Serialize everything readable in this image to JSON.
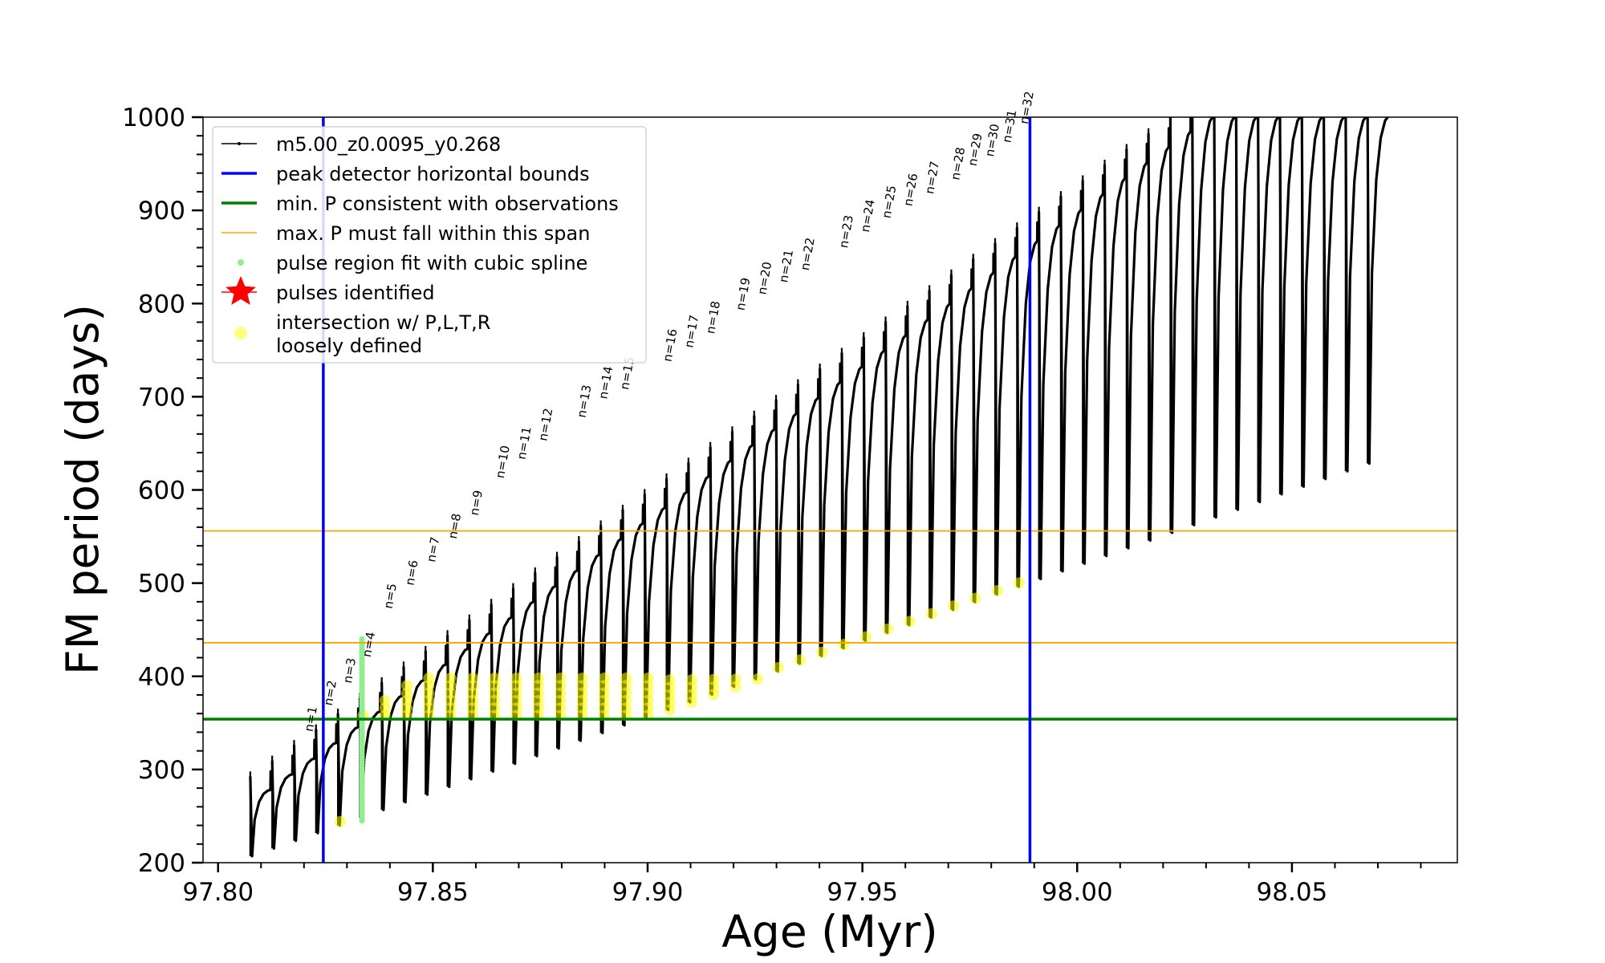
{
  "chart_data": {
    "type": "line",
    "title": "",
    "xlabel": "Age (Myr)",
    "ylabel": "FM period (days)",
    "xlim": [
      97.7965,
      98.0885
    ],
    "ylim": [
      200,
      1000
    ],
    "xticks": [
      97.8,
      97.85,
      97.9,
      97.95,
      98.0,
      98.05
    ],
    "xtick_labels": [
      "97.80",
      "97.85",
      "97.90",
      "97.95",
      "98.00",
      "98.05"
    ],
    "yticks": [
      200,
      300,
      400,
      500,
      600,
      700,
      800,
      900,
      1000
    ],
    "ytick_labels": [
      "200",
      "300",
      "400",
      "500",
      "600",
      "700",
      "800",
      "900",
      "1000"
    ],
    "grid": false,
    "legend_position": "upper-left",
    "colors": {
      "model": "#000000",
      "bounds": "#0000ff",
      "min_p": "#008000",
      "max_p": "#ffa500",
      "spline": "#90ee90",
      "pulses": "#ff0000",
      "intersection": "#ffff00"
    },
    "legend": [
      {
        "label": "m5.00_z0.0095_y0.268",
        "marker": "line-dot",
        "color": "#000000"
      },
      {
        "label": "peak detector horizontal bounds",
        "marker": "line-thick",
        "color": "#0000ff"
      },
      {
        "label": "min. P consistent with observations",
        "marker": "line-thick",
        "color": "#008000"
      },
      {
        "label": "max. P must fall within this span",
        "marker": "line-thin",
        "color": "#ffa500"
      },
      {
        "label": "pulse region fit with cubic spline",
        "marker": "dot",
        "color": "#90ee90"
      },
      {
        "label": "pulses identified",
        "marker": "star",
        "color": "#ff0000"
      },
      {
        "label": "intersection w/ P,L,T,R",
        "label2": "loosely defined",
        "marker": "circle",
        "color": "#ffff00"
      }
    ],
    "vertical_bounds": [
      97.8245,
      97.989
    ],
    "min_p": 354,
    "max_p_span": [
      436,
      556
    ],
    "pulse_labels": [
      "n=1",
      "n=2",
      "n=3",
      "n=4",
      "n=5",
      "n=6",
      "n=7",
      "n=8",
      "n=9",
      "n=10",
      "n=11",
      "n=12",
      "n=13",
      "n=14",
      "n=15",
      "n=16",
      "n=17",
      "n=18",
      "n=19",
      "n=20",
      "n=21",
      "n=22",
      "n=23",
      "n=24",
      "n=25",
      "n=26",
      "n=27",
      "n=28",
      "n=29",
      "n=30",
      "n=31",
      "n=32"
    ],
    "pulse_label_x": [
      97.822,
      97.8265,
      97.831,
      97.8355,
      97.8405,
      97.8455,
      97.8505,
      97.8555,
      97.8605,
      97.8665,
      97.8715,
      97.8765,
      97.8855,
      97.8905,
      97.8955,
      97.9055,
      97.9105,
      97.9155,
      97.9225,
      97.9275,
      97.9325,
      97.9375,
      97.9465,
      97.9515,
      97.9565,
      97.9615,
      97.9665,
      97.9725,
      97.9765,
      97.9805,
      97.9845,
      97.9885
    ],
    "pulse_label_y": [
      340,
      368,
      392,
      420,
      472,
      497,
      522,
      547,
      572,
      612,
      632,
      652,
      677,
      697,
      707,
      737,
      752,
      767,
      792,
      809,
      822,
      835,
      859,
      876,
      891,
      904,
      917,
      932,
      947,
      957,
      972,
      992
    ],
    "model_track": {
      "start_age": 97.8075,
      "cycle_spacing": 0.0051,
      "n_cycles": 52,
      "cycle_x": [
        0.0,
        0.08,
        0.2,
        0.4,
        0.6,
        0.8,
        0.92,
        0.93,
        1.0
      ],
      "first_cycle_min": 207,
      "first_cycle_peak": 278,
      "min_period_slope": 1620,
      "peak_period_slope": 3300,
      "spike_extra_top": 20
    }
  }
}
